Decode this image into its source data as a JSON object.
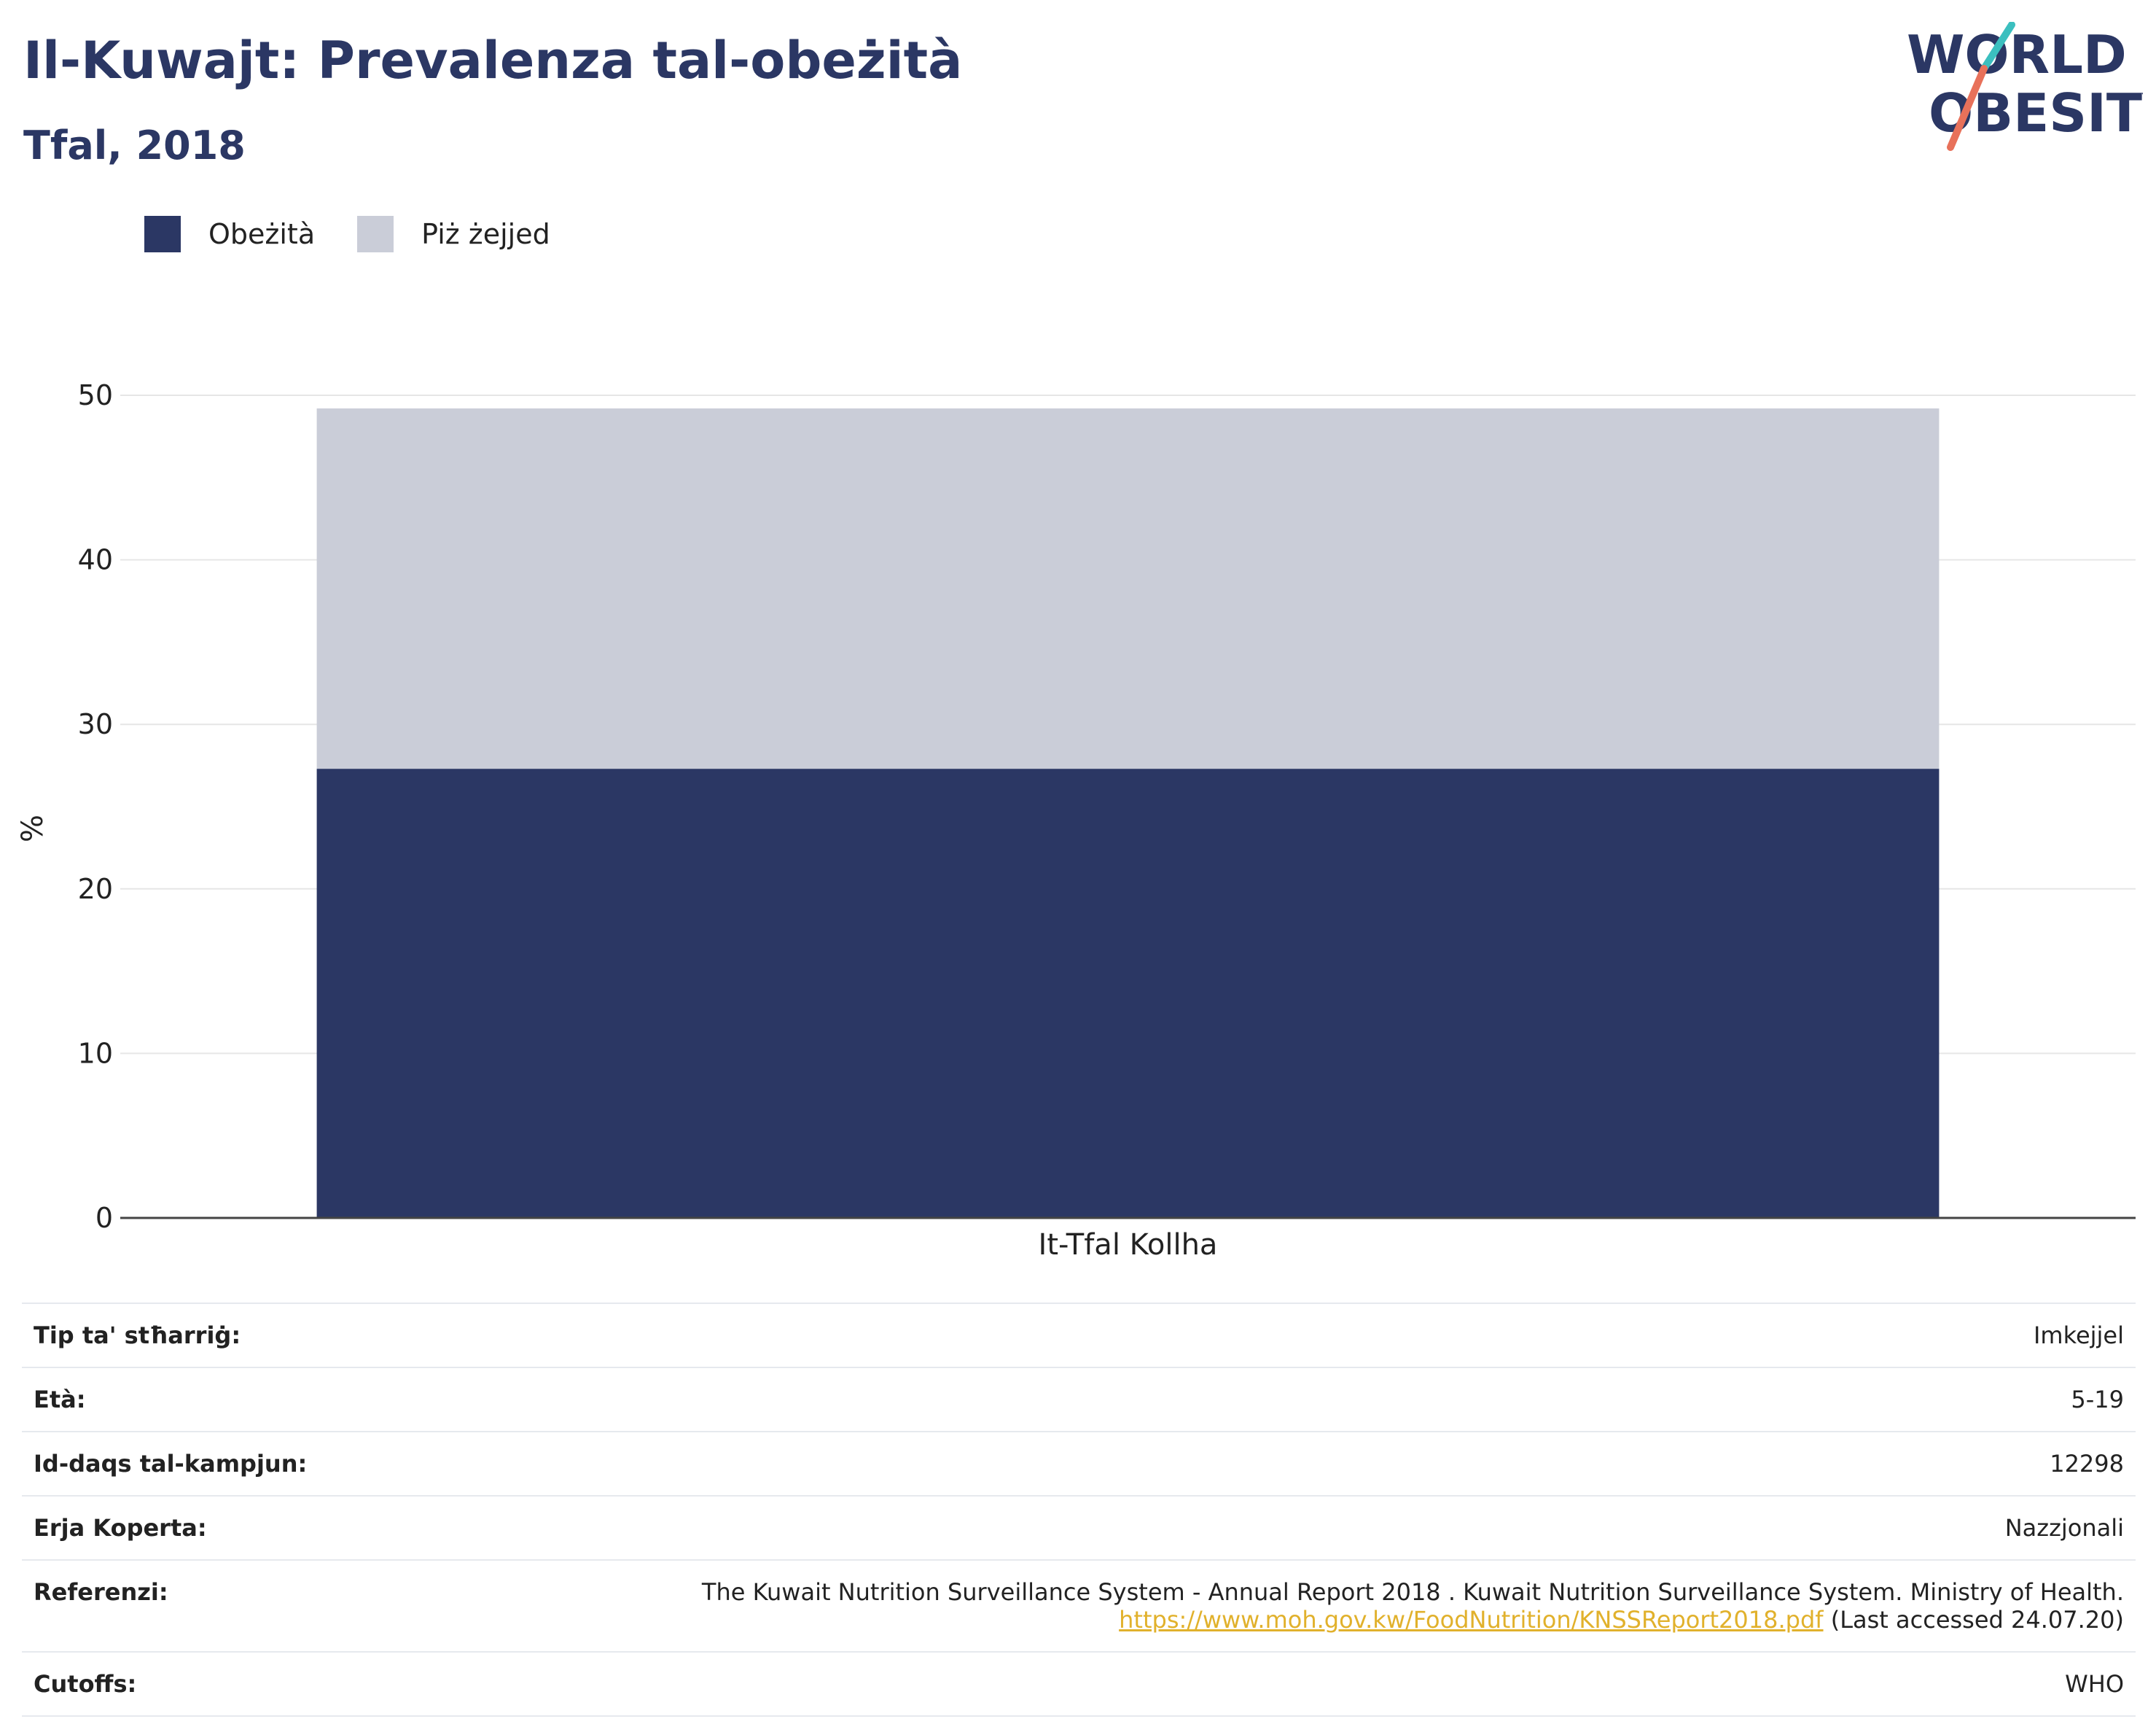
{
  "header": {
    "title": "Il-Kuwajt: Prevalenza tal-obeżità",
    "subtitle": "Tfal, 2018"
  },
  "logo": {
    "line1": "WORLD",
    "line2": "OBESITY"
  },
  "chart_data": {
    "type": "bar",
    "stacked": true,
    "categories": [
      "It-Tfal Kollha"
    ],
    "series": [
      {
        "name": "Obeżità",
        "values": [
          27.3
        ],
        "color": "#2b3764"
      },
      {
        "name": "Piż żejjed",
        "values": [
          21.9
        ],
        "color": "#cacdd8"
      }
    ],
    "ylabel": "%",
    "xlabel": "",
    "ylim": [
      0,
      50
    ],
    "yticks": [
      0,
      10,
      20,
      30,
      40,
      50
    ],
    "grid": true,
    "legend": "top-left"
  },
  "meta": {
    "rows": [
      {
        "label": "Tip ta' stħarriġ:",
        "value": "Imkejjel"
      },
      {
        "label": "Età:",
        "value": "5-19"
      },
      {
        "label": "Id-daqs tal-kampjun:",
        "value": "12298"
      },
      {
        "label": "Erja Koperta:",
        "value": "Nazzjonali"
      }
    ],
    "reference": {
      "label": "Referenzi:",
      "line1": "The Kuwait Nutrition Surveillance System - Annual Report 2018 . Kuwait Nutrition Surveillance System. Ministry of Health.",
      "link": "https://www.moh.gov.kw/FoodNutrition/KNSSReport2018.pdf",
      "suffix": "(Last accessed 24.07.20)"
    },
    "cutoffs": {
      "label": "Cutoffs:",
      "value": "WHO"
    }
  }
}
